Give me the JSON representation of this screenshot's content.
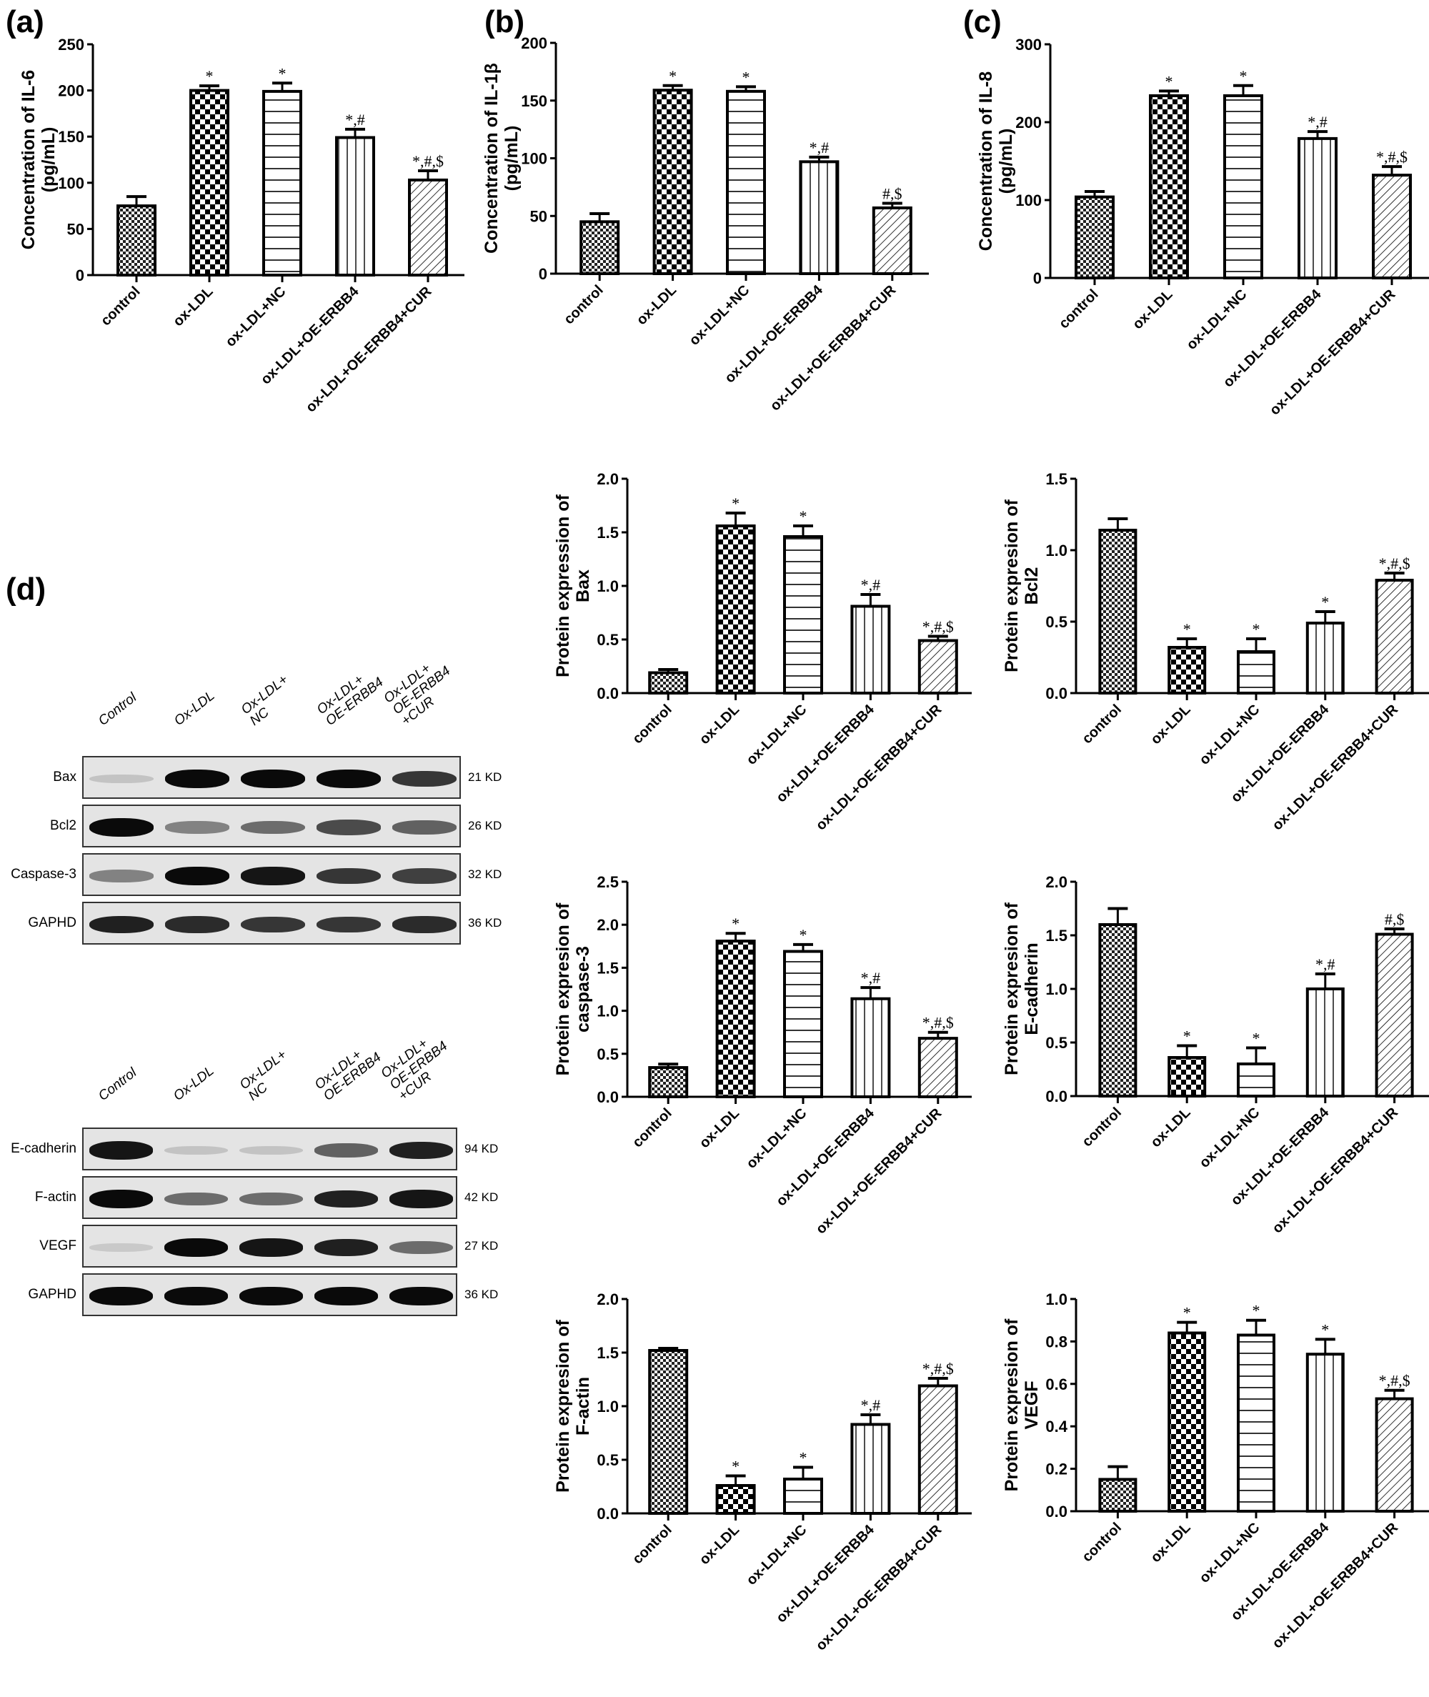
{
  "panels": {
    "a": "(a)",
    "b": "(b)",
    "c": "(c)",
    "d": "(d)"
  },
  "groups": [
    "control",
    "ox-LDL",
    "ox-LDL+NC",
    "ox-LDL+OE-ERBB4",
    "ox-LDL+OE-ERBB4+CUR"
  ],
  "chart_data": [
    {
      "id": "il6",
      "type": "bar",
      "panel": "(a)",
      "ylabel": [
        "Concentration of IL-6",
        "(pg/mL)"
      ],
      "categories": [
        "control",
        "ox-LDL",
        "ox-LDL+NC",
        "ox-LDL+OE-ERBB4",
        "ox-LDL+OE-ERBB4+CUR"
      ],
      "values": [
        75,
        200,
        199,
        149,
        103
      ],
      "errors": [
        10,
        5,
        9,
        9,
        10
      ],
      "annotations": [
        "",
        "*",
        "*",
        "*,#",
        "*,#,$"
      ],
      "ylim": [
        0,
        250
      ],
      "yticks": [
        0,
        50,
        100,
        150,
        200,
        250
      ],
      "tick_labels": [
        "0",
        "50",
        "100",
        "150",
        "200",
        "250"
      ],
      "grid": false
    },
    {
      "id": "il1b",
      "type": "bar",
      "panel": "(b)",
      "ylabel": [
        "Concentration of IL-1β",
        "(pg/mL)"
      ],
      "categories": [
        "control",
        "ox-LDL",
        "ox-LDL+NC",
        "ox-LDL+OE-ERBB4",
        "ox-LDL+OE-ERBB4+CUR"
      ],
      "values": [
        45,
        159,
        158,
        97,
        57
      ],
      "errors": [
        7,
        4,
        4,
        4,
        4
      ],
      "annotations": [
        "",
        "*",
        "*",
        "*,#",
        "#,$"
      ],
      "ylim": [
        0,
        200
      ],
      "yticks": [
        0,
        50,
        100,
        150,
        200
      ],
      "tick_labels": [
        "0",
        "50",
        "100",
        "150",
        "200"
      ],
      "grid": false
    },
    {
      "id": "il8",
      "type": "bar",
      "panel": "(c)",
      "ylabel": [
        "Concentration of IL-8",
        "(pg/mL)"
      ],
      "categories": [
        "control",
        "ox-LDL",
        "ox-LDL+NC",
        "ox-LDL+OE-ERBB4",
        "ox-LDL+OE-ERBB4+CUR"
      ],
      "values": [
        104,
        234,
        234,
        179,
        132
      ],
      "errors": [
        7,
        6,
        13,
        9,
        11
      ],
      "annotations": [
        "",
        "*",
        "*",
        "*,#",
        "*,#,$"
      ],
      "ylim": [
        0,
        300
      ],
      "yticks": [
        0,
        100,
        200,
        300
      ],
      "tick_labels": [
        "0",
        "100",
        "200",
        "300"
      ],
      "grid": false
    },
    {
      "id": "bax",
      "type": "bar",
      "ylabel": [
        "Protein expression of",
        "Bax"
      ],
      "categories": [
        "control",
        "ox-LDL",
        "ox-LDL+NC",
        "ox-LDL+OE-ERBB4",
        "ox-LDL+OE-ERBB4+CUR"
      ],
      "values": [
        0.19,
        1.56,
        1.46,
        0.81,
        0.49
      ],
      "errors": [
        0.03,
        0.12,
        0.1,
        0.11,
        0.04
      ],
      "annotations": [
        "",
        "*",
        "*",
        "*,#",
        "*,#,$"
      ],
      "ylim": [
        0,
        2.0
      ],
      "yticks": [
        0,
        0.5,
        1.0,
        1.5,
        2.0
      ],
      "tick_labels": [
        "0.0",
        "0.5",
        "1.0",
        "1.5",
        "2.0"
      ],
      "grid": false
    },
    {
      "id": "bcl2",
      "type": "bar",
      "ylabel": [
        "Protein expresion of",
        "Bcl2"
      ],
      "categories": [
        "control",
        "ox-LDL",
        "ox-LDL+NC",
        "ox-LDL+OE-ERBB4",
        "ox-LDL+OE-ERBB4+CUR"
      ],
      "values": [
        1.14,
        0.32,
        0.29,
        0.49,
        0.79
      ],
      "errors": [
        0.08,
        0.06,
        0.09,
        0.08,
        0.05
      ],
      "annotations": [
        "",
        "*",
        "*",
        "*",
        "*,#,$"
      ],
      "ylim": [
        0,
        1.5
      ],
      "yticks": [
        0,
        0.5,
        1.0,
        1.5
      ],
      "tick_labels": [
        "0.0",
        "0.5",
        "1.0",
        "1.5"
      ],
      "grid": false
    },
    {
      "id": "caspase3",
      "type": "bar",
      "ylabel": [
        "Protein expresion of",
        "caspase-3"
      ],
      "categories": [
        "control",
        "ox-LDL",
        "ox-LDL+NC",
        "ox-LDL+OE-ERBB4",
        "ox-LDL+OE-ERBB4+CUR"
      ],
      "values": [
        0.34,
        1.81,
        1.69,
        1.14,
        0.68
      ],
      "errors": [
        0.04,
        0.09,
        0.08,
        0.13,
        0.07
      ],
      "annotations": [
        "",
        "*",
        "*",
        "*,#",
        "*,#,$"
      ],
      "ylim": [
        0,
        2.5
      ],
      "yticks": [
        0,
        0.5,
        1.0,
        1.5,
        2.0,
        2.5
      ],
      "tick_labels": [
        "0.0",
        "0.5",
        "1.0",
        "1.5",
        "2.0",
        "2.5"
      ],
      "grid": false
    },
    {
      "id": "ecadherin",
      "type": "bar",
      "ylabel": [
        "Protein expresion of",
        "E-cadherin"
      ],
      "categories": [
        "control",
        "ox-LDL",
        "ox-LDL+NC",
        "ox-LDL+OE-ERBB4",
        "ox-LDL+OE-ERBB4+CUR"
      ],
      "values": [
        1.6,
        0.36,
        0.3,
        1.0,
        1.51
      ],
      "errors": [
        0.15,
        0.11,
        0.15,
        0.14,
        0.05
      ],
      "annotations": [
        "",
        "*",
        "*",
        "*,#",
        "#,$"
      ],
      "ylim": [
        0,
        2.0
      ],
      "yticks": [
        0,
        0.5,
        1.0,
        1.5,
        2.0
      ],
      "tick_labels": [
        "0.0",
        "0.5",
        "1.0",
        "1.5",
        "2.0"
      ],
      "grid": false
    },
    {
      "id": "factin",
      "type": "bar",
      "ylabel": [
        "Protein expresion of",
        "F-actin"
      ],
      "categories": [
        "control",
        "ox-LDL",
        "ox-LDL+NC",
        "ox-LDL+OE-ERBB4",
        "ox-LDL+OE-ERBB4+CUR"
      ],
      "values": [
        1.52,
        0.26,
        0.32,
        0.83,
        1.19
      ],
      "errors": [
        0.02,
        0.09,
        0.11,
        0.09,
        0.07
      ],
      "annotations": [
        "",
        "*",
        "*",
        "*,#",
        "*,#,$"
      ],
      "ylim": [
        0,
        2.0
      ],
      "yticks": [
        0,
        0.5,
        1.0,
        1.5,
        2.0
      ],
      "tick_labels": [
        "0.0",
        "0.5",
        "1.0",
        "1.5",
        "2.0"
      ],
      "grid": false
    },
    {
      "id": "vegf",
      "type": "bar",
      "ylabel": [
        "Protein expresion of",
        "VEGF"
      ],
      "categories": [
        "control",
        "ox-LDL",
        "ox-LDL+NC",
        "ox-LDL+OE-ERBB4",
        "ox-LDL+OE-ERBB4+CUR"
      ],
      "values": [
        0.15,
        0.84,
        0.83,
        0.74,
        0.53
      ],
      "errors": [
        0.06,
        0.05,
        0.07,
        0.07,
        0.04
      ],
      "annotations": [
        "",
        "*",
        "*",
        "*",
        "*,#,$"
      ],
      "ylim": [
        0,
        1.0
      ],
      "yticks": [
        0,
        0.2,
        0.4,
        0.6,
        0.8,
        1.0
      ],
      "tick_labels": [
        "0.0",
        "0.2",
        "0.4",
        "0.6",
        "0.8",
        "1.0"
      ],
      "grid": false
    }
  ],
  "blots": [
    {
      "id": "blot-apoptosis",
      "lanes": [
        "Control",
        "Ox-LDL",
        "Ox-LDL+\nNC",
        "Ox-LDL+\nOE-ERBB4",
        "Ox-LDL+\nOE-ERBB4\n+CUR"
      ],
      "rows": [
        {
          "label": "Bax",
          "kd": "21 KD",
          "intensity": [
            0.15,
            1.0,
            1.0,
            1.0,
            0.8
          ]
        },
        {
          "label": "Bcl2",
          "kd": "26 KD",
          "intensity": [
            1.0,
            0.45,
            0.55,
            0.7,
            0.6
          ]
        },
        {
          "label": "Caspase-3",
          "kd": "32 KD",
          "intensity": [
            0.45,
            1.0,
            0.95,
            0.8,
            0.75
          ]
        },
        {
          "label": "GAPHD",
          "kd": "36 KD",
          "intensity": [
            0.9,
            0.85,
            0.8,
            0.8,
            0.85
          ]
        }
      ]
    },
    {
      "id": "blot-emt",
      "lanes": [
        "Control",
        "Ox-LDL",
        "Ox-LDL+\nNC",
        "Ox-LDL+\nOE-ERBB4",
        "Ox-LDL+\nOE-ERBB4\n+CUR"
      ],
      "rows": [
        {
          "label": "E-cadherin",
          "kd": "94 KD",
          "intensity": [
            0.95,
            0.15,
            0.15,
            0.6,
            0.9
          ]
        },
        {
          "label": "F-actin",
          "kd": "42 KD",
          "intensity": [
            1.0,
            0.55,
            0.55,
            0.9,
            0.95
          ]
        },
        {
          "label": "VEGF",
          "kd": "27 KD",
          "intensity": [
            0.12,
            1.0,
            0.95,
            0.9,
            0.55
          ]
        },
        {
          "label": "GAPHD",
          "kd": "36 KD",
          "intensity": [
            1.0,
            1.0,
            1.0,
            1.0,
            1.0
          ]
        }
      ]
    }
  ]
}
